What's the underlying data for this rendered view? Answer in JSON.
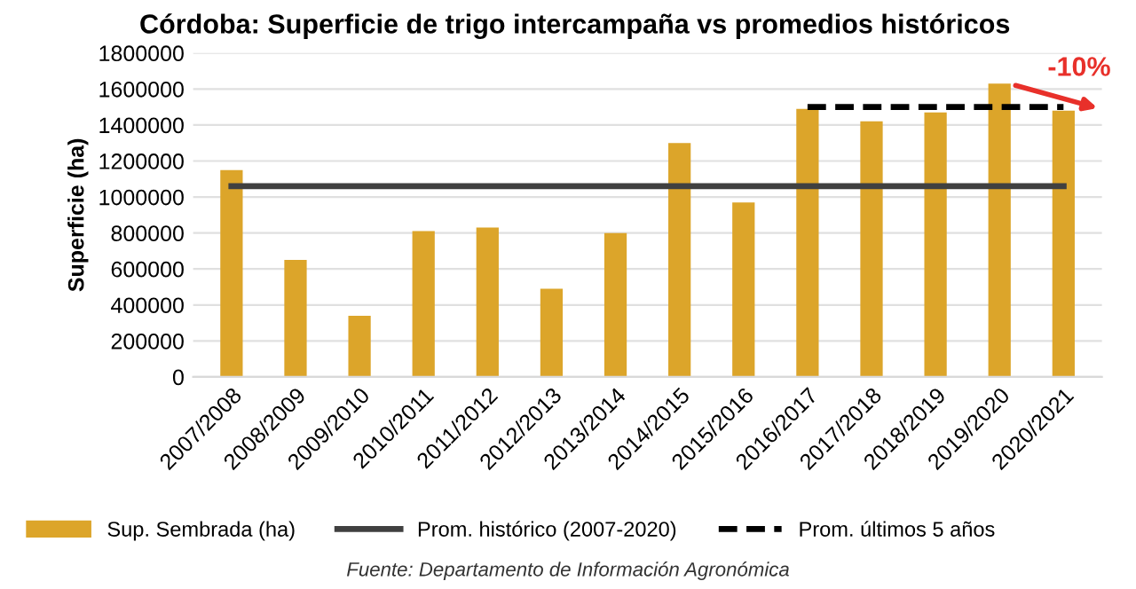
{
  "chart_data": {
    "type": "bar",
    "title": "Córdoba: Superficie de trigo intercampaña vs promedios históricos",
    "ylabel": "Superficie (ha)",
    "categories": [
      "2007/2008",
      "2008/2009",
      "2009/2010",
      "2010/2011",
      "2011/2012",
      "2012/2013",
      "2013/2014",
      "2014/2015",
      "2015/2016",
      "2016/2017",
      "2017/2018",
      "2018/2019",
      "2019/2020",
      "2020/2021"
    ],
    "series": [
      {
        "name": "Sup. Sembrada (ha)",
        "color": "#dca52a",
        "values": [
          1150000,
          650000,
          340000,
          810000,
          830000,
          490000,
          800000,
          1300000,
          970000,
          1490000,
          1420000,
          1470000,
          1630000,
          1480000
        ]
      },
      {
        "name": "Prom. histórico (2007-2020)",
        "type": "line",
        "line_style": "solid",
        "color": "#404040",
        "values": [
          1060000,
          1060000,
          1060000,
          1060000,
          1060000,
          1060000,
          1060000,
          1060000,
          1060000,
          1060000,
          1060000,
          1060000,
          1060000,
          1060000
        ]
      },
      {
        "name": "Prom. últimos 5 años",
        "type": "line",
        "line_style": "dashed",
        "color": "#000000",
        "values": [
          null,
          null,
          null,
          null,
          null,
          null,
          null,
          null,
          null,
          1500000,
          1500000,
          1500000,
          1500000,
          1500000
        ]
      }
    ],
    "ylim": [
      0,
      1800000
    ],
    "yticks": [
      0,
      200000,
      400000,
      600000,
      800000,
      1000000,
      1200000,
      1400000,
      1600000,
      1800000
    ],
    "grid": "y",
    "legend": "bottom",
    "annotations": [
      "-10%",
      "Fuente: Departamento de Información Agronómica"
    ]
  }
}
